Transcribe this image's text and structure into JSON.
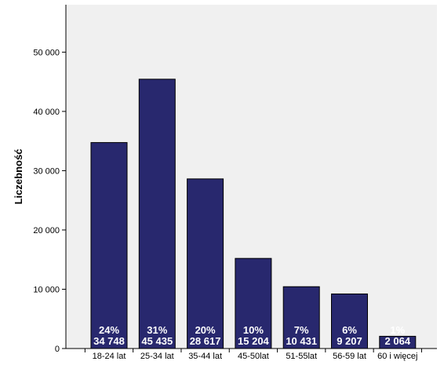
{
  "chart_data": {
    "type": "bar",
    "categories": [
      "18-24 lat",
      "25-34 lat",
      "35-44 lat",
      "45-50lat",
      "51-55lat",
      "56-59 lat",
      "60 i więcej"
    ],
    "values": [
      34748,
      45435,
      28617,
      15204,
      10431,
      9207,
      2064
    ],
    "value_labels": [
      "34 748",
      "45 435",
      "28 617",
      "15 204",
      "10 431",
      "9 207",
      "2 064"
    ],
    "percent_labels": [
      "24%",
      "31%",
      "20%",
      "10%",
      "7%",
      "6%",
      "1%"
    ],
    "title": "",
    "xlabel": "",
    "ylabel": "Liczebność",
    "ylim": [
      0,
      58000
    ],
    "yticks": [
      0,
      10000,
      20000,
      30000,
      40000,
      50000
    ],
    "ytick_labels": [
      "0",
      "10 000",
      "20 000",
      "30 000",
      "40 000",
      "50 000"
    ],
    "grid": false,
    "legend": "none",
    "colors": {
      "plot_background": "#f0f0f0",
      "bar_fill": "#28286e",
      "bar_stroke": "#000000",
      "axis": "#000000",
      "label_text": "#ffffff"
    }
  }
}
